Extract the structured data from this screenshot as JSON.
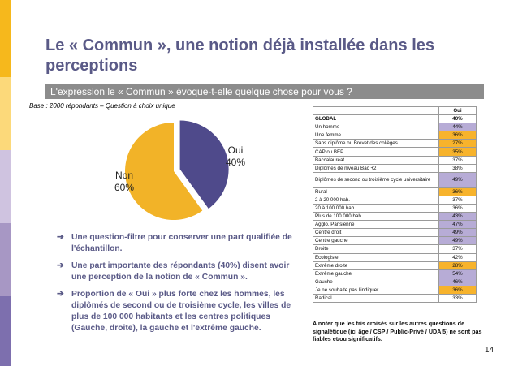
{
  "colors": {
    "band": [
      "#f6b81c",
      "#fcd97a",
      "#cfc3e0",
      "#a797c4",
      "#7d6fae"
    ],
    "oui": "#4f4a8b",
    "non": "#f2b328",
    "highlight_purple": "#b7acd6",
    "highlight_yellow": "#f7b32c"
  },
  "title": "Le « Commun », une notion déjà installée dans les perceptions",
  "question": "L'expression le « Commun » évoque-t-elle quelque chose pour vous ?",
  "base": "Base : 2000 répondants – Question à choix unique",
  "chart_data": {
    "type": "pie",
    "categories": [
      "Oui",
      "Non"
    ],
    "values": [
      40,
      60
    ],
    "labels": [
      {
        "name": "Oui",
        "pct": "40%"
      },
      {
        "name": "Non",
        "pct": "60%"
      }
    ]
  },
  "bullets": [
    "Une question-filtre pour conserver une part qualifiée de l'échantillon.",
    "Une part importante des répondants (40%) disent avoir une perception de la notion de « Commun ».",
    "Proportion de « Oui » plus forte chez les hommes, les diplômés de second ou de troisième cycle, les villes de plus de 100 000 habitants et les centres politiques (Gauche, droite), la gauche et l'extrême gauche."
  ],
  "table": {
    "header": "Oui",
    "rows": [
      {
        "label": "GLOBAL",
        "value": "40%",
        "hl": "none"
      },
      {
        "label": "Un homme",
        "value": "44%",
        "hl": "purple"
      },
      {
        "label": "Une femme",
        "value": "36%",
        "hl": "yellow"
      },
      {
        "label": "Sans diplôme ou Brevet des collèges",
        "value": "27%",
        "hl": "yellow"
      },
      {
        "label": "CAP ou BEP",
        "value": "35%",
        "hl": "yellow"
      },
      {
        "label": "Baccalauréat",
        "value": "37%",
        "hl": "none"
      },
      {
        "label": "Diplômes de niveau Bac +2",
        "value": "38%",
        "hl": "none"
      },
      {
        "label": "Diplômes de second ou troisième cycle universitaire",
        "value": "49%",
        "hl": "purple",
        "tall": true
      },
      {
        "label": "Rural",
        "value": "36%",
        "hl": "yellow"
      },
      {
        "label": "2 à 20 000 hab.",
        "value": "37%",
        "hl": "none"
      },
      {
        "label": "20 à 100 000 hab.",
        "value": "36%",
        "hl": "none"
      },
      {
        "label": "Plus de 100 000 hab.",
        "value": "43%",
        "hl": "purple"
      },
      {
        "label": "Agglo. Parisienne",
        "value": "47%",
        "hl": "purple"
      },
      {
        "label": "Centre droit",
        "value": "49%",
        "hl": "purple"
      },
      {
        "label": "Centre gauche",
        "value": "49%",
        "hl": "purple"
      },
      {
        "label": "Droite",
        "value": "37%",
        "hl": "none"
      },
      {
        "label": "Ecologiste",
        "value": "42%",
        "hl": "none"
      },
      {
        "label": "Extrême droite",
        "value": "28%",
        "hl": "yellow"
      },
      {
        "label": "Extrême gauche",
        "value": "54%",
        "hl": "purple"
      },
      {
        "label": "Gauche",
        "value": "46%",
        "hl": "purple"
      },
      {
        "label": "Je ne souhaite pas l'indiquer",
        "value": "36%",
        "hl": "yellow"
      },
      {
        "label": "Radical",
        "value": "33%",
        "hl": "none"
      }
    ]
  },
  "note": "A noter que les tris croisés sur les autres questions de signalétique (ici âge / CSP / Public-Privé / UDA 5) ne sont pas fiables et/ou significatifs.",
  "page_number": "14"
}
